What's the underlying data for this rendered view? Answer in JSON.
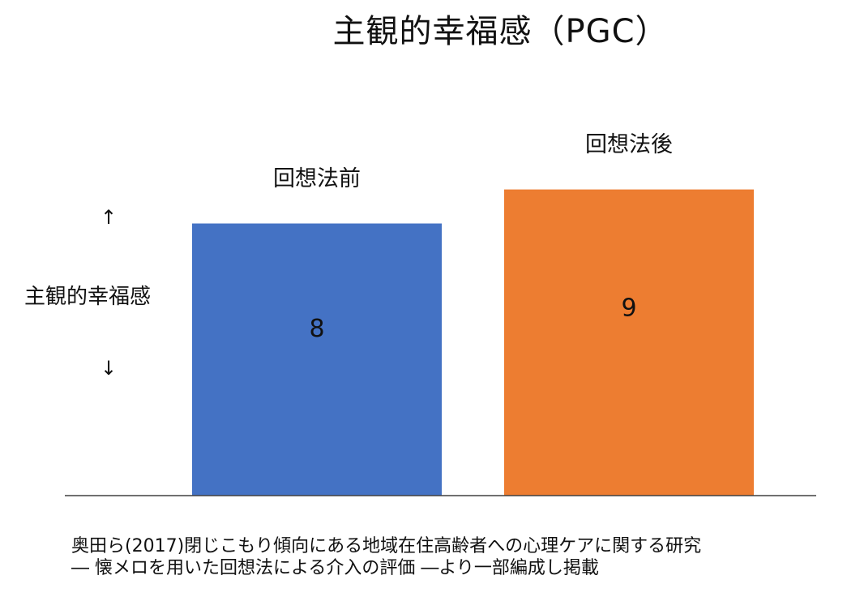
{
  "chart_data": {
    "type": "bar",
    "title": "主観的幸福感（PGC）",
    "ylabel": "主観的幸福感",
    "y_arrow_up": "↑",
    "y_arrow_down": "↓",
    "categories": [
      "回想法前",
      "回想法後"
    ],
    "values": [
      8,
      9
    ],
    "data_labels": [
      "8",
      "9"
    ],
    "colors": [
      "#4472C4",
      "#ED7D31"
    ],
    "ylim": [
      0,
      9.3
    ],
    "grid": false,
    "legend": "none"
  },
  "source": {
    "line1": "奥田ら(2017)閉じこもり傾向にある地域在住高齢者への心理ケアに関する研究",
    "line2": "― 懐メロを用いた回想法による介入の評価 ―より一部編成し掲載"
  }
}
